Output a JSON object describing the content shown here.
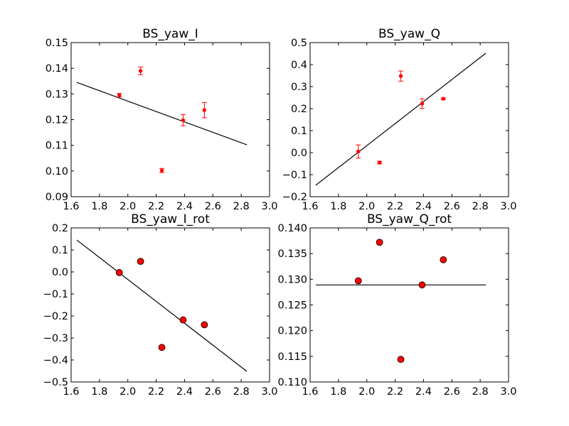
{
  "chart_data": [
    {
      "type": "scatter",
      "title": "BS_yaw_I",
      "xlim": [
        1.6,
        3.0
      ],
      "ylim": [
        0.09,
        0.15
      ],
      "x_ticks": [
        "1.6",
        "1.8",
        "2.0",
        "2.2",
        "2.4",
        "2.6",
        "2.8",
        "3.0"
      ],
      "y_ticks": [
        "0.09",
        "0.10",
        "0.11",
        "0.12",
        "0.13",
        "0.14",
        "0.15"
      ],
      "grid": false,
      "marker": "errorbar",
      "points": [
        {
          "x": 1.94,
          "y": 0.1295,
          "err": 0.0007
        },
        {
          "x": 2.09,
          "y": 0.139,
          "err": 0.0015
        },
        {
          "x": 2.24,
          "y": 0.1002,
          "err": 0.0008
        },
        {
          "x": 2.39,
          "y": 0.1198,
          "err": 0.0022
        },
        {
          "x": 2.54,
          "y": 0.1237,
          "err": 0.003
        }
      ],
      "fit_line": {
        "x": [
          1.64,
          2.84
        ],
        "y": [
          0.1345,
          0.1102
        ]
      },
      "point_color": "#ff0000",
      "line_color": "#000000"
    },
    {
      "type": "scatter",
      "title": "BS_yaw_Q",
      "xlim": [
        1.6,
        3.0
      ],
      "ylim": [
        -0.2,
        0.5
      ],
      "x_ticks": [
        "1.6",
        "1.8",
        "2.0",
        "2.2",
        "2.4",
        "2.6",
        "2.8",
        "3.0"
      ],
      "y_ticks": [
        "−0.2",
        "−0.1",
        "0.0",
        "0.1",
        "0.2",
        "0.3",
        "0.4",
        "0.5"
      ],
      "grid": false,
      "marker": "errorbar",
      "points": [
        {
          "x": 1.94,
          "y": 0.005,
          "err": 0.03
        },
        {
          "x": 2.09,
          "y": -0.045,
          "err": 0.006
        },
        {
          "x": 2.24,
          "y": 0.348,
          "err": 0.023
        },
        {
          "x": 2.39,
          "y": 0.223,
          "err": 0.022
        },
        {
          "x": 2.54,
          "y": 0.245,
          "err": 0.004
        }
      ],
      "fit_line": {
        "x": [
          1.64,
          2.84
        ],
        "y": [
          -0.148,
          0.452
        ]
      },
      "point_color": "#ff0000",
      "line_color": "#000000"
    },
    {
      "type": "scatter",
      "title": "BS_yaw_I_rot",
      "xlim": [
        1.6,
        3.0
      ],
      "ylim": [
        -0.5,
        0.2
      ],
      "x_ticks": [
        "1.6",
        "1.8",
        "2.0",
        "2.2",
        "2.4",
        "2.6",
        "2.8",
        "3.0"
      ],
      "y_ticks": [
        "−0.5",
        "−0.4",
        "−0.3",
        "−0.2",
        "−0.1",
        "0.0",
        "0.1",
        "0.2"
      ],
      "grid": false,
      "marker": "circle",
      "points": [
        {
          "x": 1.94,
          "y": -0.003
        },
        {
          "x": 2.09,
          "y": 0.048
        },
        {
          "x": 2.24,
          "y": -0.343
        },
        {
          "x": 2.39,
          "y": -0.218
        },
        {
          "x": 2.54,
          "y": -0.24
        }
      ],
      "fit_line": {
        "x": [
          1.64,
          2.84
        ],
        "y": [
          0.145,
          -0.452
        ]
      },
      "point_color": "#ff0000",
      "line_color": "#000000"
    },
    {
      "type": "scatter",
      "title": "BS_yaw_Q_rot",
      "xlim": [
        1.6,
        3.0
      ],
      "ylim": [
        0.11,
        0.14
      ],
      "x_ticks": [
        "1.6",
        "1.8",
        "2.0",
        "2.2",
        "2.4",
        "2.6",
        "2.8",
        "3.0"
      ],
      "y_ticks": [
        "0.110",
        "0.115",
        "0.120",
        "0.125",
        "0.130",
        "0.135",
        "0.140"
      ],
      "grid": false,
      "marker": "circle",
      "points": [
        {
          "x": 1.94,
          "y": 0.1297
        },
        {
          "x": 2.09,
          "y": 0.1372
        },
        {
          "x": 2.24,
          "y": 0.1144
        },
        {
          "x": 2.39,
          "y": 0.1289
        },
        {
          "x": 2.54,
          "y": 0.1338
        }
      ],
      "fit_line": {
        "x": [
          1.64,
          2.84
        ],
        "y": [
          0.1289,
          0.1289
        ]
      },
      "point_color": "#ff0000",
      "line_color": "#000000"
    }
  ]
}
